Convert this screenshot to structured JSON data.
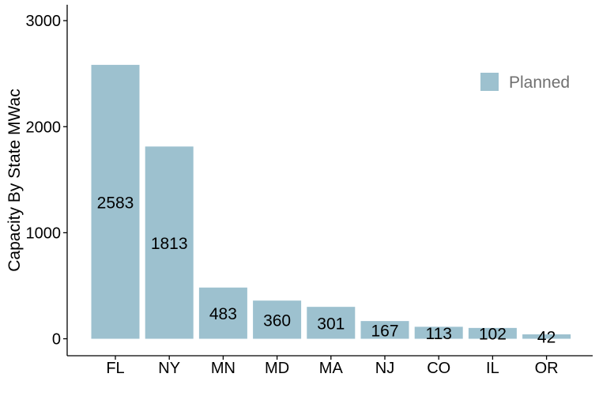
{
  "chart_data": {
    "type": "bar",
    "categories": [
      "FL",
      "NY",
      "MN",
      "MD",
      "MA",
      "NJ",
      "CO",
      "IL",
      "OR"
    ],
    "series": [
      {
        "name": "Planned",
        "values": [
          2583,
          1813,
          483,
          360,
          301,
          167,
          113,
          102,
          42
        ]
      }
    ],
    "data_labels": [
      "2583",
      "1813",
      "483",
      "360",
      "301",
      "167",
      "113",
      "102",
      "42"
    ],
    "ylabel": "Capacity By State MWac",
    "xlabel": "",
    "ylim": [
      -160,
      3150
    ],
    "yticks": [
      0,
      1000,
      2000,
      3000
    ],
    "ytick_labels": [
      "0",
      "1000",
      "2000",
      "3000"
    ],
    "legend": {
      "position": "top-right",
      "label": "Planned"
    },
    "colors": {
      "bar": "#9dc1cf",
      "legend_text": "#707070"
    },
    "grid": false
  }
}
